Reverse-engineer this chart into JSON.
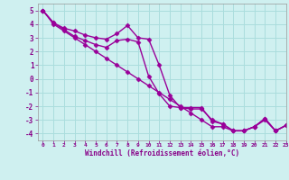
{
  "xlabel": "Windchill (Refroidissement éolien,°C)",
  "xlim": [
    -0.5,
    23
  ],
  "ylim": [
    -4.5,
    5.5
  ],
  "yticks": [
    -4,
    -3,
    -2,
    -1,
    0,
    1,
    2,
    3,
    4,
    5
  ],
  "xticks": [
    0,
    1,
    2,
    3,
    4,
    5,
    6,
    7,
    8,
    9,
    10,
    11,
    12,
    13,
    14,
    15,
    16,
    17,
    18,
    19,
    20,
    21,
    22,
    23
  ],
  "background_color": "#cff0f0",
  "grid_color": "#aadddd",
  "line_color": "#990099",
  "line1_x": [
    0,
    1,
    2,
    3,
    4,
    5,
    6,
    7,
    8,
    9,
    10,
    11,
    12,
    13,
    14,
    15,
    16,
    17,
    18,
    19,
    20,
    21,
    22,
    23
  ],
  "line1_y": [
    5.0,
    4.1,
    3.7,
    3.5,
    3.2,
    3.0,
    2.9,
    3.3,
    3.9,
    3.0,
    2.9,
    1.0,
    -1.2,
    -2.1,
    -2.2,
    -2.2,
    -3.0,
    -3.3,
    -3.8,
    -3.8,
    -3.5,
    -2.9,
    -3.8,
    -3.4
  ],
  "line2_x": [
    0,
    1,
    2,
    3,
    4,
    5,
    6,
    7,
    8,
    9,
    10,
    11,
    12,
    13,
    14,
    15,
    16,
    17,
    18,
    19,
    20,
    21,
    22,
    23
  ],
  "line2_y": [
    5.0,
    4.1,
    3.6,
    3.1,
    2.8,
    2.5,
    2.3,
    2.8,
    2.9,
    2.7,
    0.2,
    -1.1,
    -2.0,
    -2.1,
    -2.1,
    -2.1,
    -3.1,
    -3.3,
    -3.8,
    -3.8,
    -3.5,
    -2.9,
    -3.8,
    -3.4
  ],
  "line3_x": [
    0,
    1,
    2,
    3,
    4,
    5,
    6,
    7,
    8,
    9,
    10,
    11,
    12,
    13,
    14,
    15,
    16,
    17,
    18,
    19,
    20,
    21,
    22,
    23
  ],
  "line3_y": [
    5.0,
    4.0,
    3.5,
    3.0,
    2.5,
    2.0,
    1.5,
    1.0,
    0.5,
    0.0,
    -0.5,
    -1.0,
    -1.5,
    -2.0,
    -2.5,
    -3.0,
    -3.5,
    -3.5,
    -3.8,
    -3.8,
    -3.5,
    -3.0,
    -3.8,
    -3.4
  ],
  "marker": "D",
  "markersize": 2.5,
  "linewidth": 1.0
}
